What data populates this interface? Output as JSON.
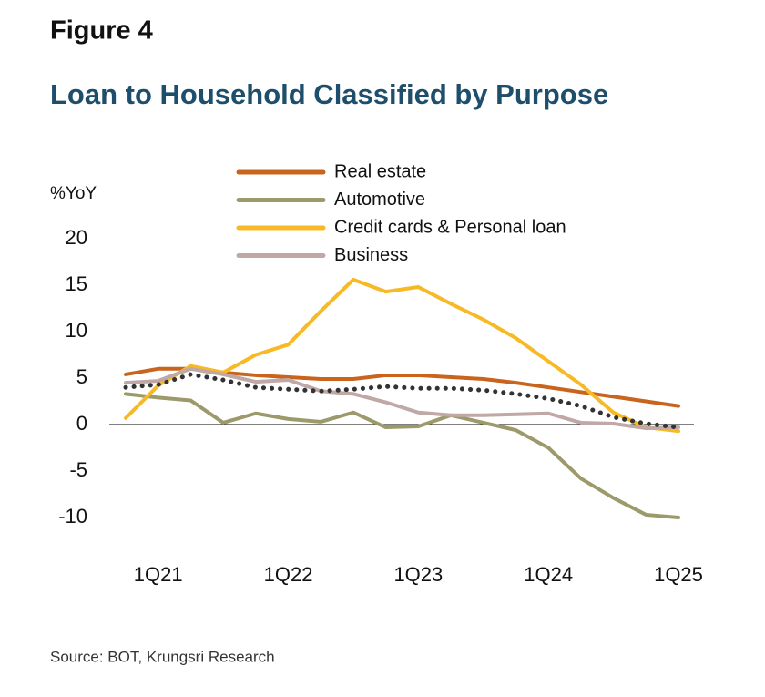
{
  "chart_data": {
    "type": "line",
    "figure_label": "Figure 4",
    "title": "Loan to Household Classified by Purpose",
    "y_label": "%YoY",
    "source": "Source: BOT, Krungsri Research",
    "categories": [
      null,
      "1Q21",
      null,
      null,
      null,
      "1Q22",
      null,
      null,
      null,
      "1Q23",
      null,
      null,
      null,
      "1Q24",
      null,
      null,
      null,
      "1Q25"
    ],
    "series": [
      {
        "name": "Real estate",
        "color": "#c8641e",
        "values": [
          5.4,
          6.0,
          6.0,
          5.6,
          5.3,
          5.1,
          4.9,
          4.9,
          5.3,
          5.3,
          5.1,
          4.9,
          4.5,
          4.0,
          3.5,
          3.0,
          2.5,
          2.0
        ]
      },
      {
        "name": "Automotive",
        "color": "#9c9a6a",
        "values": [
          3.3,
          2.9,
          2.6,
          0.2,
          1.2,
          0.6,
          0.3,
          1.3,
          -0.3,
          -0.2,
          1.0,
          0.2,
          -0.6,
          -2.5,
          -5.8,
          -7.9,
          -9.7,
          -10.0
        ]
      },
      {
        "name": "Credit cards & Personal loan",
        "color": "#f7b924",
        "values": [
          0.7,
          4.2,
          6.3,
          5.6,
          7.5,
          8.6,
          12.2,
          15.6,
          14.3,
          14.8,
          13.0,
          11.3,
          9.3,
          6.8,
          4.3,
          1.3,
          -0.3,
          -0.7
        ]
      },
      {
        "name": "Business",
        "color": "#c0a8a6",
        "values": [
          4.5,
          4.7,
          6.0,
          5.4,
          4.6,
          4.8,
          3.6,
          3.3,
          2.4,
          1.3,
          1.0,
          1.0,
          1.1,
          1.2,
          0.2,
          0.1,
          -0.4,
          -0.3
        ]
      },
      {
        "color": "#333333",
        "dotted": true,
        "values": [
          4.0,
          4.3,
          5.4,
          4.8,
          4.0,
          3.8,
          3.6,
          3.8,
          4.1,
          3.9,
          3.9,
          3.7,
          3.3,
          2.8,
          2.0,
          0.8,
          0.1,
          -0.3
        ]
      }
    ],
    "ylim": [
      -12,
      22
    ],
    "yticks": [
      -10,
      -5,
      0,
      5,
      10,
      15,
      20
    ],
    "grid": false,
    "zero_line": true,
    "legend": "top"
  }
}
